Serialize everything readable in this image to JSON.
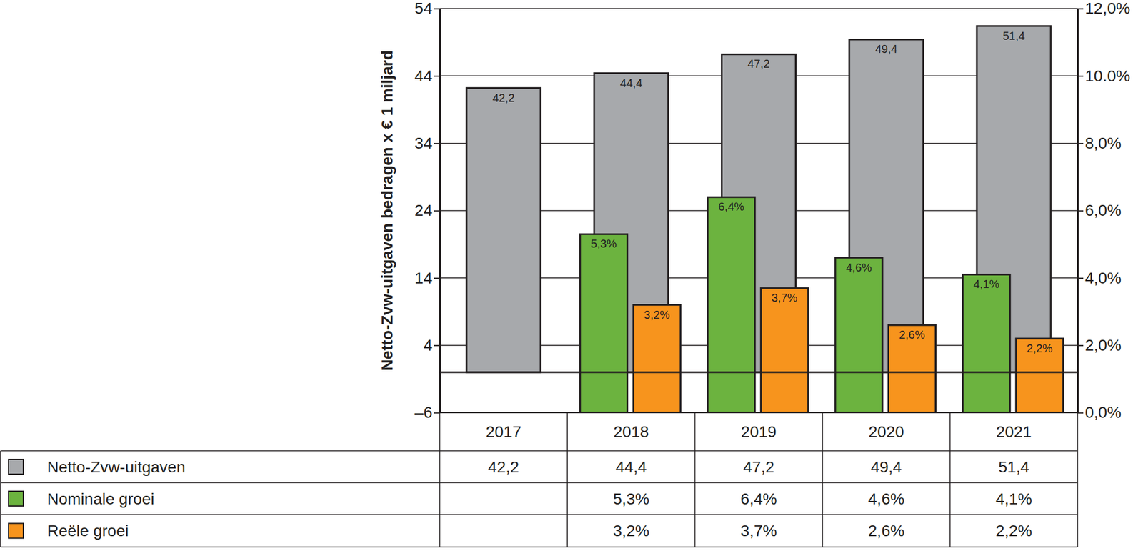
{
  "chart_data": {
    "type": "bar",
    "ylabel": "Netto-Zvw-uitgaven bedragen x € 1 miljard",
    "categories": [
      "2017",
      "2018",
      "2019",
      "2020",
      "2021"
    ],
    "series": [
      {
        "name": "Netto-Zvw-uitgaven",
        "color": "#a7a9ac",
        "values": [
          42.2,
          44.4,
          47.2,
          49.4,
          51.4
        ],
        "value_labels": [
          "42,2",
          "44,4",
          "47,2",
          "49,4",
          "51,4"
        ]
      },
      {
        "name": "Nominale groei",
        "color": "#6cb33f",
        "axis": "y2",
        "values": [
          null,
          5.3,
          6.4,
          4.6,
          4.1
        ],
        "value_labels": [
          null,
          "5,3%",
          "6,4%",
          "4,6%",
          "4,1%"
        ]
      },
      {
        "name": "Reële groei",
        "color": "#f7941d",
        "axis": "y2",
        "values": [
          null,
          3.2,
          3.7,
          2.6,
          2.2
        ],
        "value_labels": [
          null,
          "3,2%",
          "3,7%",
          "2,6%",
          "2,2%"
        ]
      }
    ],
    "ylim": [
      -6,
      54
    ],
    "yticks": [
      {
        "value": -6,
        "label": "–6"
      },
      4,
      14,
      24,
      34,
      44,
      54
    ],
    "y2lim": [
      0,
      12
    ],
    "y2ticks": [
      {
        "value": 0,
        "label": "0,0%"
      },
      {
        "value": 2,
        "label": "2,0%"
      },
      {
        "value": 4,
        "label": "4,0%"
      },
      {
        "value": 6,
        "label": "6,0%"
      },
      {
        "value": 8,
        "label": "8,0%"
      },
      {
        "value": 10,
        "label": "10.0%"
      },
      {
        "value": 12,
        "label": "12,0%"
      }
    ],
    "grid": true,
    "data_labels": true
  }
}
